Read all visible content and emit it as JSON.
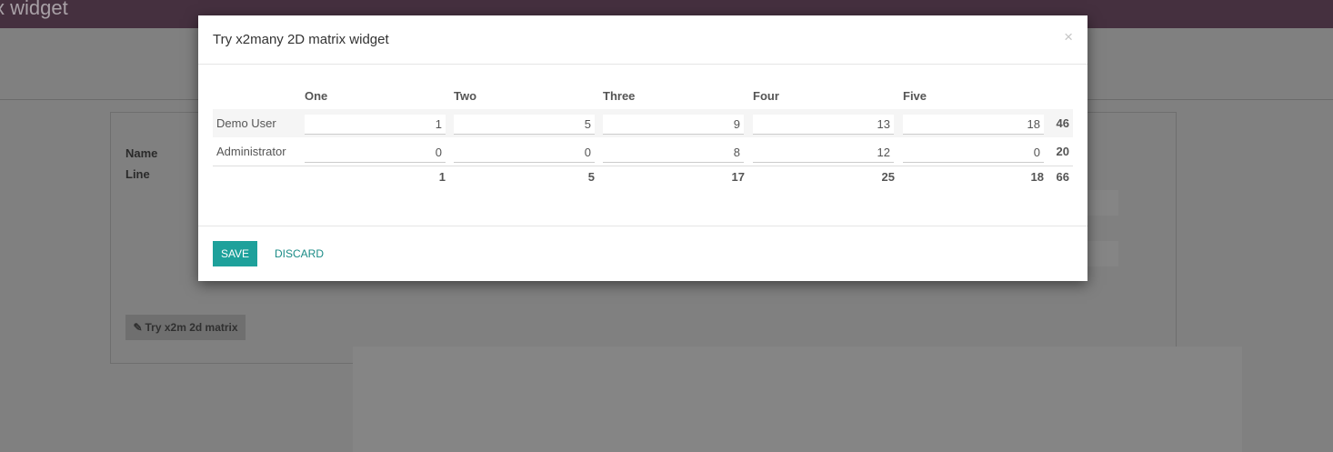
{
  "navbar": {
    "title": "x widget"
  },
  "form": {
    "name_label": "Name",
    "line_label": "Line",
    "try_button": "Try x2m 2d matrix"
  },
  "modal": {
    "title": "Try x2many 2D matrix widget",
    "close": "×",
    "columns": [
      "One",
      "Two",
      "Three",
      "Four",
      "Five"
    ],
    "rows": [
      {
        "label": "Demo User",
        "values": [
          "1",
          "5",
          "9",
          "13",
          "18"
        ],
        "total": "46"
      },
      {
        "label": "Administrator",
        "values": [
          "0",
          "0",
          "8",
          "12",
          "0"
        ],
        "total": "20"
      }
    ],
    "column_totals": [
      "1",
      "5",
      "17",
      "25",
      "18"
    ],
    "grand_total": "66",
    "save_label": "SAVE",
    "discard_label": "DISCARD"
  },
  "colors": {
    "navbar": "#45303f",
    "primary": "#1ea19b"
  }
}
